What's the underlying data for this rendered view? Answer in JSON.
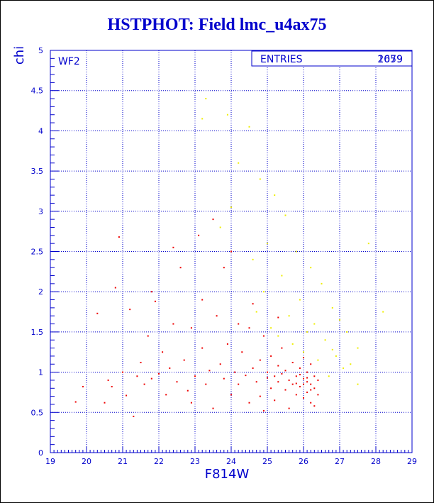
{
  "chart_data": {
    "type": "scatter",
    "title": "HSTPHOT: Field lmc_u4ax75",
    "xlabel": "F814W",
    "ylabel": "chi",
    "xlim": [
      19,
      29
    ],
    "ylim": [
      0,
      5
    ],
    "x_ticks": [
      "19",
      "20",
      "21",
      "22",
      "23",
      "24",
      "25",
      "26",
      "27",
      "28",
      "29"
    ],
    "y_ticks": [
      "0",
      "0.5",
      "1",
      "1.5",
      "2",
      "2.5",
      "3",
      "3.5",
      "4",
      "4.5",
      "5"
    ],
    "grid": true,
    "panel_label": "WF2",
    "stats_box": {
      "label": "ENTRIES",
      "values": [
        "2079",
        "1659"
      ]
    },
    "colors": {
      "axes": "#0000cc",
      "series_a": "#ee0000",
      "series_b": "#eeee00"
    },
    "series": [
      {
        "color": "#ee0000",
        "points": [
          [
            19.7,
            0.63
          ],
          [
            19.9,
            0.82
          ],
          [
            20.3,
            1.73
          ],
          [
            20.5,
            0.62
          ],
          [
            20.6,
            0.9
          ],
          [
            20.9,
            2.68
          ],
          [
            20.8,
            2.05
          ],
          [
            21.0,
            1.0
          ],
          [
            21.1,
            0.71
          ],
          [
            21.2,
            1.78
          ],
          [
            21.3,
            0.45
          ],
          [
            21.4,
            0.95
          ],
          [
            21.5,
            1.12
          ],
          [
            21.6,
            0.85
          ],
          [
            21.7,
            1.45
          ],
          [
            21.8,
            2.0
          ],
          [
            21.9,
            1.88
          ],
          [
            22.0,
            0.98
          ],
          [
            22.1,
            1.25
          ],
          [
            22.2,
            0.72
          ],
          [
            22.3,
            1.05
          ],
          [
            22.4,
            1.6
          ],
          [
            22.5,
            0.88
          ],
          [
            22.6,
            2.3
          ],
          [
            22.7,
            1.15
          ],
          [
            22.8,
            0.77
          ],
          [
            22.9,
            1.55
          ],
          [
            23.0,
            0.95
          ],
          [
            23.1,
            2.7
          ],
          [
            23.2,
            1.3
          ],
          [
            23.3,
            0.85
          ],
          [
            23.4,
            1.02
          ],
          [
            23.5,
            2.9
          ],
          [
            23.5,
            0.55
          ],
          [
            23.6,
            1.7
          ],
          [
            23.7,
            1.1
          ],
          [
            23.8,
            0.92
          ],
          [
            23.9,
            1.35
          ],
          [
            24.0,
            0.72
          ],
          [
            24.0,
            2.5
          ],
          [
            24.1,
            1.0
          ],
          [
            24.2,
            0.85
          ],
          [
            24.3,
            1.25
          ],
          [
            24.4,
            0.96
          ],
          [
            24.5,
            1.55
          ],
          [
            24.5,
            0.62
          ],
          [
            24.6,
            1.05
          ],
          [
            24.7,
            0.88
          ],
          [
            24.8,
            1.15
          ],
          [
            24.8,
            0.7
          ],
          [
            24.9,
            1.45
          ],
          [
            25.0,
            0.93
          ],
          [
            25.0,
            1.0
          ],
          [
            25.1,
            0.8
          ],
          [
            25.1,
            1.2
          ],
          [
            25.2,
            0.95
          ],
          [
            25.2,
            0.65
          ],
          [
            25.3,
            1.08
          ],
          [
            25.3,
            0.88
          ],
          [
            25.4,
            0.98
          ],
          [
            25.4,
            1.3
          ],
          [
            25.5,
            0.78
          ],
          [
            25.5,
            1.02
          ],
          [
            25.6,
            0.9
          ],
          [
            25.6,
            0.55
          ],
          [
            25.7,
            1.12
          ],
          [
            25.7,
            0.85
          ],
          [
            25.8,
            0.95
          ],
          [
            25.8,
            0.72
          ],
          [
            25.9,
            1.05
          ],
          [
            25.9,
            0.82
          ],
          [
            26.0,
            0.92
          ],
          [
            26.0,
            0.68
          ],
          [
            26.0,
            1.18
          ],
          [
            26.1,
            0.88
          ],
          [
            26.1,
            0.75
          ],
          [
            26.1,
            1.0
          ],
          [
            26.2,
            0.85
          ],
          [
            26.2,
            0.62
          ],
          [
            26.2,
            1.1
          ],
          [
            26.3,
            0.8
          ],
          [
            26.3,
            0.95
          ],
          [
            26.3,
            0.58
          ],
          [
            26.4,
            0.9
          ],
          [
            26.4,
            0.72
          ],
          [
            24.2,
            1.6
          ],
          [
            23.2,
            1.9
          ],
          [
            22.4,
            2.55
          ],
          [
            23.8,
            2.3
          ],
          [
            24.6,
            1.85
          ],
          [
            21.8,
            0.92
          ],
          [
            22.9,
            0.62
          ],
          [
            20.7,
            0.82
          ],
          [
            25.3,
            1.68
          ],
          [
            24.9,
            0.52
          ],
          [
            26.0,
            0.85
          ],
          [
            25.9,
            0.97
          ],
          [
            26.1,
            0.93
          ],
          [
            25.8,
            0.86
          ],
          [
            26.2,
            0.78
          ]
        ]
      },
      {
        "color": "#eeee00",
        "points": [
          [
            23.3,
            4.4
          ],
          [
            23.9,
            4.2
          ],
          [
            24.5,
            4.05
          ],
          [
            23.2,
            4.15
          ],
          [
            24.2,
            3.6
          ],
          [
            24.8,
            3.4
          ],
          [
            25.2,
            3.2
          ],
          [
            24.0,
            3.05
          ],
          [
            25.5,
            2.95
          ],
          [
            23.7,
            2.8
          ],
          [
            25.0,
            2.6
          ],
          [
            25.8,
            2.5
          ],
          [
            24.6,
            2.4
          ],
          [
            26.2,
            2.3
          ],
          [
            25.4,
            2.2
          ],
          [
            26.5,
            2.1
          ],
          [
            24.9,
            2.0
          ],
          [
            25.9,
            1.9
          ],
          [
            26.8,
            1.8
          ],
          [
            25.6,
            1.7
          ],
          [
            27.0,
            1.65
          ],
          [
            26.3,
            1.6
          ],
          [
            27.2,
            1.5
          ],
          [
            25.3,
            1.45
          ],
          [
            26.6,
            1.4
          ],
          [
            27.5,
            1.3
          ],
          [
            26.0,
            1.25
          ],
          [
            26.9,
            1.2
          ],
          [
            27.3,
            1.1
          ],
          [
            25.7,
            1.35
          ],
          [
            26.4,
            1.15
          ],
          [
            27.1,
            1.05
          ],
          [
            28.2,
            1.75
          ],
          [
            27.8,
            2.6
          ],
          [
            27.5,
            0.85
          ],
          [
            26.7,
            0.95
          ],
          [
            25.1,
            1.55
          ],
          [
            24.7,
            1.75
          ],
          [
            26.1,
            1.5
          ],
          [
            26.8,
            1.28
          ]
        ]
      }
    ]
  }
}
